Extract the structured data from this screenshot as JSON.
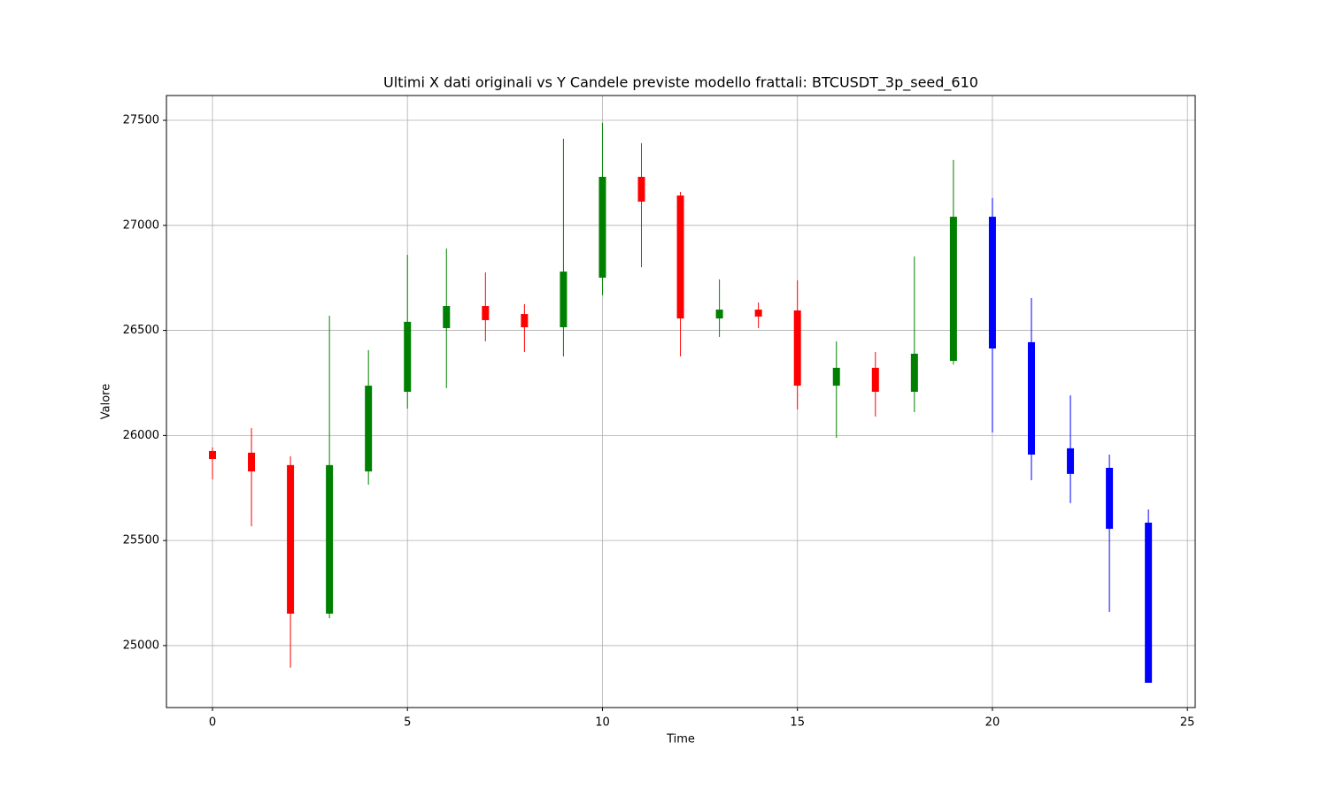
{
  "chart_data": {
    "type": "candlestick",
    "title": "Ultimi X dati originali vs Y Candele previste modello frattali: BTCUSDT_3p_seed_610",
    "x_label": "Time",
    "y_label": "Valore",
    "x": [
      0,
      1,
      2,
      3,
      4,
      5,
      6,
      7,
      8,
      9,
      10,
      11,
      12,
      13,
      14,
      15,
      16,
      17,
      18,
      19,
      20,
      21,
      22,
      23,
      24
    ],
    "open": [
      25926,
      25918,
      25859,
      25152,
      25829,
      26208,
      26511,
      26616,
      26578,
      26515,
      26751,
      27231,
      27142,
      26557,
      26599,
      26595,
      26237,
      26322,
      26208,
      26355,
      27041,
      26444,
      25939,
      25846,
      25585
    ],
    "high": [
      25943,
      26035,
      25901,
      26570,
      26406,
      26860,
      26890,
      26776,
      26625,
      27412,
      27488,
      27391,
      27159,
      26743,
      26633,
      26738,
      26448,
      26397,
      26852,
      27311,
      27130,
      26654,
      26191,
      25909,
      25648
    ],
    "low": [
      25791,
      25568,
      24895,
      25130,
      25766,
      26128,
      26225,
      26448,
      26397,
      26376,
      26667,
      26801,
      26376,
      26469,
      26511,
      26124,
      25989,
      26090,
      26111,
      26338,
      26014,
      25787,
      25678,
      25160,
      24823
    ],
    "close": [
      25888,
      25829,
      25152,
      25859,
      26237,
      26541,
      26616,
      26549,
      26515,
      26780,
      27231,
      27113,
      26557,
      26599,
      26566,
      26237,
      26322,
      26208,
      26389,
      27041,
      26414,
      25909,
      25817,
      25556,
      24823
    ],
    "colors": [
      "red",
      "red",
      "red",
      "green",
      "green",
      "green",
      "green",
      "red",
      "red",
      "green",
      "green",
      "red",
      "red",
      "green",
      "red",
      "red",
      "green",
      "red",
      "green",
      "green",
      "blue",
      "blue",
      "blue",
      "blue",
      "blue"
    ],
    "xlim": [
      -1.18,
      25.2
    ],
    "ylim": [
      24705,
      27618
    ],
    "xticks": [
      0,
      5,
      10,
      15,
      20,
      25
    ],
    "yticks": [
      25000,
      25500,
      26000,
      26500,
      27000,
      27500
    ],
    "grid": true
  }
}
